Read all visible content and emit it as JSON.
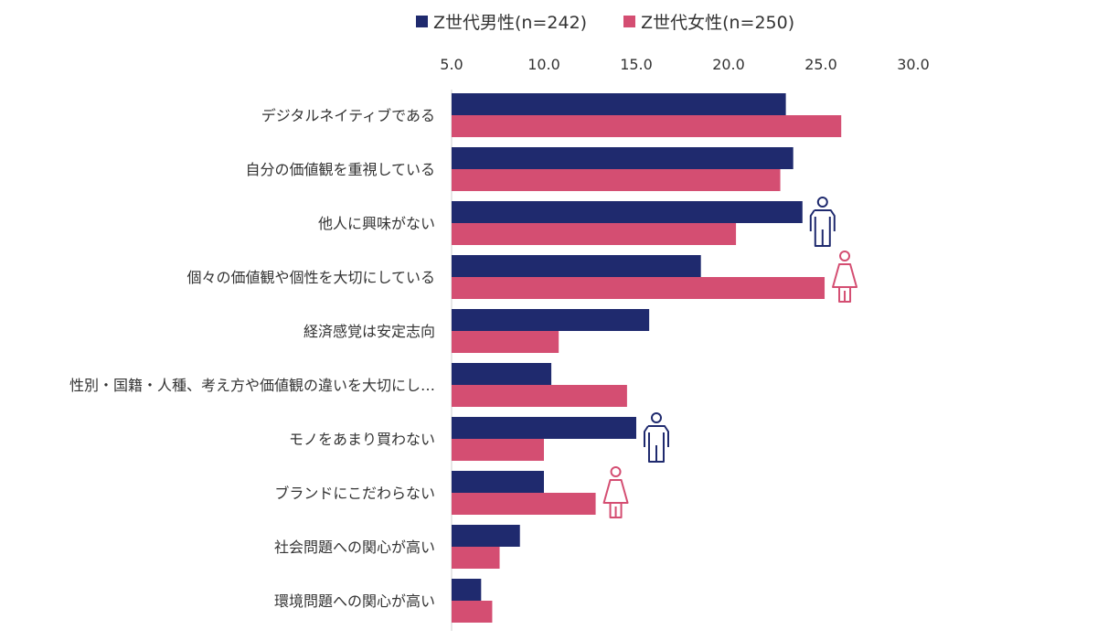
{
  "chart_data": {
    "type": "bar",
    "orientation": "horizontal",
    "categories": [
      "デジタルネイティブである",
      "自分の価値観を重視している",
      "他人に興味がない",
      "個々の価値観や個性を大切にしている",
      "経済感覚は安定志向",
      "性別・国籍・人種、考え方や価値観の違いを大切にし…",
      "モノをあまり買わない",
      "ブランドにこだわらない",
      "社会問題への関心が高い",
      "環境問題への関心が高い"
    ],
    "series": [
      {
        "name": "Z世代男性(n=242)",
        "color": "#1f2a6e",
        "values": [
          23.1,
          23.5,
          24.0,
          18.5,
          15.7,
          10.4,
          15.0,
          10.0,
          8.7,
          6.6
        ]
      },
      {
        "name": "Z世代女性(n=250)",
        "color": "#d44e72",
        "values": [
          26.1,
          22.8,
          20.4,
          25.2,
          10.8,
          14.5,
          10.0,
          12.8,
          7.6,
          7.2
        ]
      }
    ],
    "xlim": [
      5.0,
      30.0
    ],
    "xticks": [
      "5.0",
      "10.0",
      "15.0",
      "20.0",
      "25.0",
      "30.0"
    ],
    "legend_position": "top",
    "grid": false,
    "icons": [
      {
        "type": "male-figure",
        "category_index": 2,
        "color": "#1f2a6e"
      },
      {
        "type": "female-figure",
        "category_index": 3,
        "color": "#d44e72"
      },
      {
        "type": "male-figure",
        "category_index": 6,
        "color": "#1f2a6e"
      },
      {
        "type": "female-figure",
        "category_index": 7,
        "color": "#d44e72"
      }
    ]
  }
}
